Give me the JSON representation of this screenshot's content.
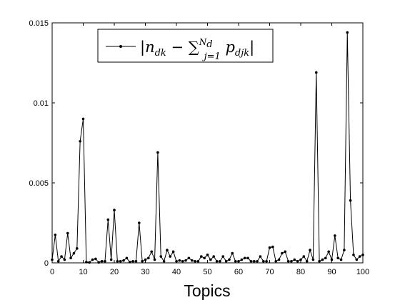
{
  "chart_data": {
    "type": "line",
    "title": "",
    "xlabel": "Topics",
    "ylabel": "",
    "xlim": [
      0,
      100
    ],
    "ylim": [
      0,
      0.015
    ],
    "xticks": [
      0,
      10,
      20,
      30,
      40,
      50,
      60,
      70,
      80,
      90,
      100
    ],
    "yticks": [
      0,
      0.005,
      0.01,
      0.015
    ],
    "ytick_labels": [
      "0",
      "0.005",
      "0.01",
      "0.015"
    ],
    "grid": false,
    "legend_position": "top-center",
    "series": [
      {
        "name": "|n_dk − Σ_{j=1}^{N_d} p_djk|",
        "color": "#000000",
        "marker": "dot",
        "x": [
          0,
          1,
          2,
          3,
          4,
          5,
          6,
          7,
          8,
          9,
          10,
          11,
          12,
          13,
          14,
          15,
          16,
          17,
          18,
          19,
          20,
          21,
          22,
          23,
          24,
          25,
          26,
          27,
          28,
          29,
          30,
          31,
          32,
          33,
          34,
          35,
          36,
          37,
          38,
          39,
          40,
          41,
          42,
          43,
          44,
          45,
          46,
          47,
          48,
          49,
          50,
          51,
          52,
          53,
          54,
          55,
          56,
          57,
          58,
          59,
          60,
          61,
          62,
          63,
          64,
          65,
          66,
          67,
          68,
          69,
          70,
          71,
          72,
          73,
          74,
          75,
          76,
          77,
          78,
          79,
          80,
          81,
          82,
          83,
          84,
          85,
          86,
          87,
          88,
          89,
          90,
          91,
          92,
          93,
          94,
          95,
          96,
          97,
          98,
          99,
          100
        ],
        "values": [
          0.0002,
          0.00175,
          0.0001,
          0.0004,
          0.0002,
          0.00185,
          0.0003,
          0.0006,
          0.0009,
          0.0076,
          0.009,
          5e-05,
          3e-05,
          0.0002,
          0.00025,
          3e-05,
          0.0001,
          0.0001,
          0.0027,
          0.0002,
          0.0033,
          0.0001,
          0.0001,
          0.00015,
          0.0003,
          5e-05,
          0.0001,
          0.0001,
          0.0025,
          0.0001,
          0.0002,
          0.0003,
          0.0007,
          0.0002,
          0.0069,
          0.0004,
          0.0001,
          0.0008,
          0.0004,
          0.0007,
          0.0001,
          0.00015,
          0.0001,
          0.00015,
          0.0003,
          0.00015,
          0.0001,
          0.0001,
          0.0004,
          0.0003,
          0.0005,
          0.0002,
          0.0004,
          0.0001,
          0.0001,
          0.0004,
          0.0001,
          0.0002,
          0.0006,
          0.0001,
          0.0001,
          0.0002,
          0.0003,
          0.0003,
          0.0001,
          0.0001,
          0.0001,
          0.0004,
          0.0001,
          0.0001,
          0.00095,
          0.001,
          0.0001,
          0.0002,
          0.0006,
          0.0007,
          0.0001,
          0.0001,
          0.0002,
          0.0001,
          0.0002,
          0.0004,
          0.0001,
          0.0008,
          0.0002,
          0.0119,
          0.0001,
          0.0002,
          0.0003,
          0.0007,
          0.0002,
          0.0017,
          0.0003,
          0.0002,
          0.0008,
          0.0144,
          0.0039,
          0.0005,
          0.0002,
          0.0004,
          0.0005
        ]
      }
    ]
  }
}
